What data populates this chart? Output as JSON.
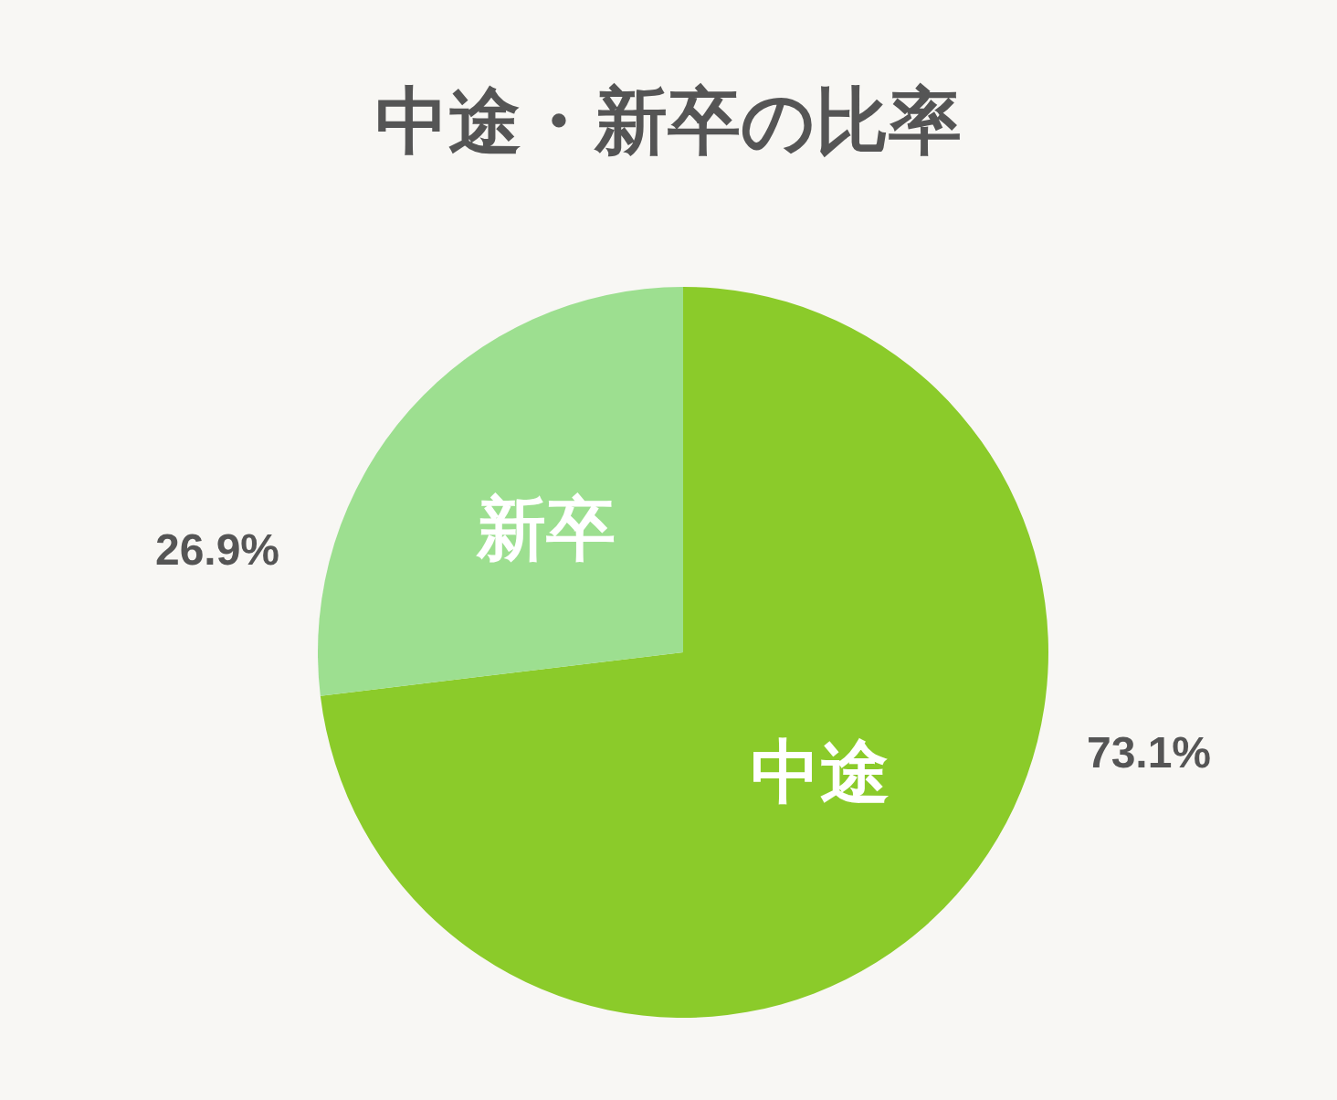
{
  "chart_data": {
    "type": "pie",
    "title": "中途・新卒の比率",
    "categories": [
      "中途",
      "新卒"
    ],
    "values": [
      73.1,
      26.9
    ],
    "colors": [
      "#8bcb2a",
      "#9ddf90"
    ],
    "value_labels": [
      "73.1%",
      "26.9%"
    ]
  }
}
